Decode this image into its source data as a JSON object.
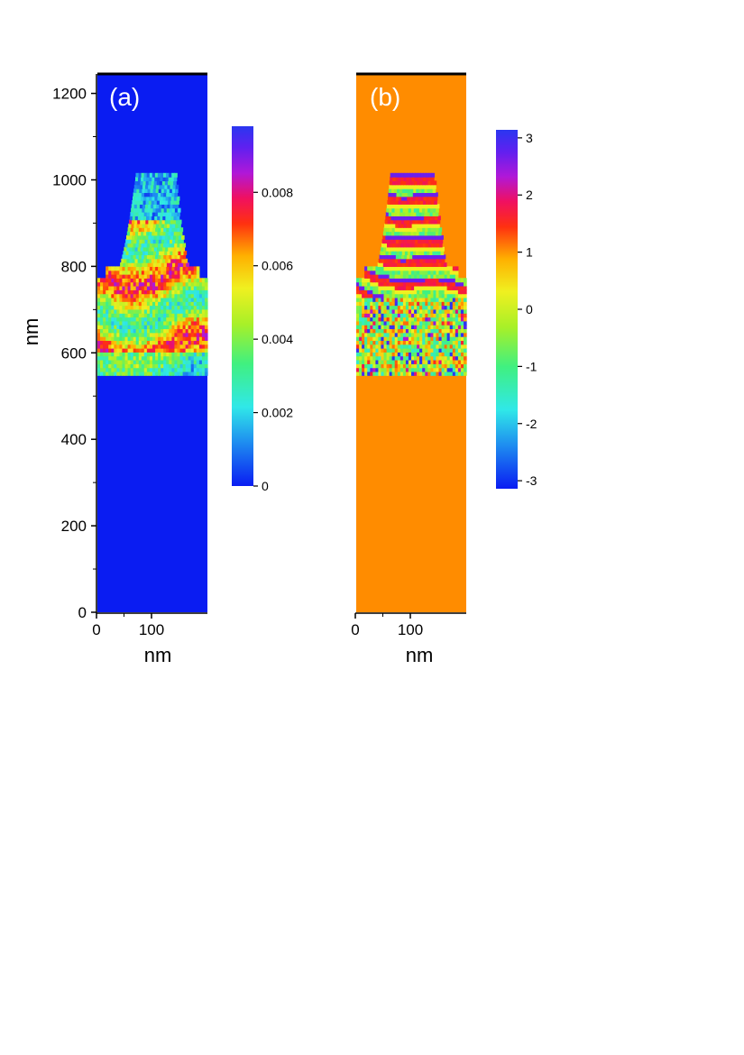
{
  "chart_data": [
    {
      "type": "heatmap",
      "panel_label": "(a)",
      "xlabel": "nm",
      "ylabel": "nm",
      "xlim": [
        0,
        200
      ],
      "ylim": [
        0,
        1245
      ],
      "xticks": [
        0,
        100
      ],
      "yticks": [
        0,
        200,
        400,
        600,
        800,
        1000,
        1200
      ],
      "background_value": 0,
      "feature": {
        "y_range": [
          548,
          1010
        ],
        "top_width_range": [
          70,
          140
        ],
        "bottom_width_range": [
          0,
          200
        ],
        "flare_y": 772,
        "description_bands_y": [
          590,
          640,
          700,
          740,
          790,
          830
        ]
      },
      "colorbar": {
        "min": 0,
        "max": 0.0098,
        "ticks": [
          "0",
          "0.002",
          "0.004",
          "0.006",
          "0.008"
        ]
      },
      "colors": {
        "background": "#0a1cf2"
      }
    },
    {
      "type": "heatmap",
      "panel_label": "(b)",
      "xlabel": "nm",
      "ylabel": "",
      "xlim": [
        0,
        200
      ],
      "ylim": [
        0,
        1245
      ],
      "xticks": [
        0,
        100
      ],
      "yticks": [],
      "background_value": 0.3,
      "feature": {
        "y_range": [
          548,
          1010
        ],
        "top_width_range": [
          62,
          140
        ],
        "bottom_width_range": [
          0,
          200
        ],
        "flare_y": 772
      },
      "colorbar": {
        "min": -3.14,
        "max": 3.14,
        "ticks": [
          "-3",
          "-2",
          "-1",
          "0",
          "1",
          "2",
          "3"
        ]
      },
      "colors": {
        "background": "#ff8c00"
      }
    }
  ]
}
